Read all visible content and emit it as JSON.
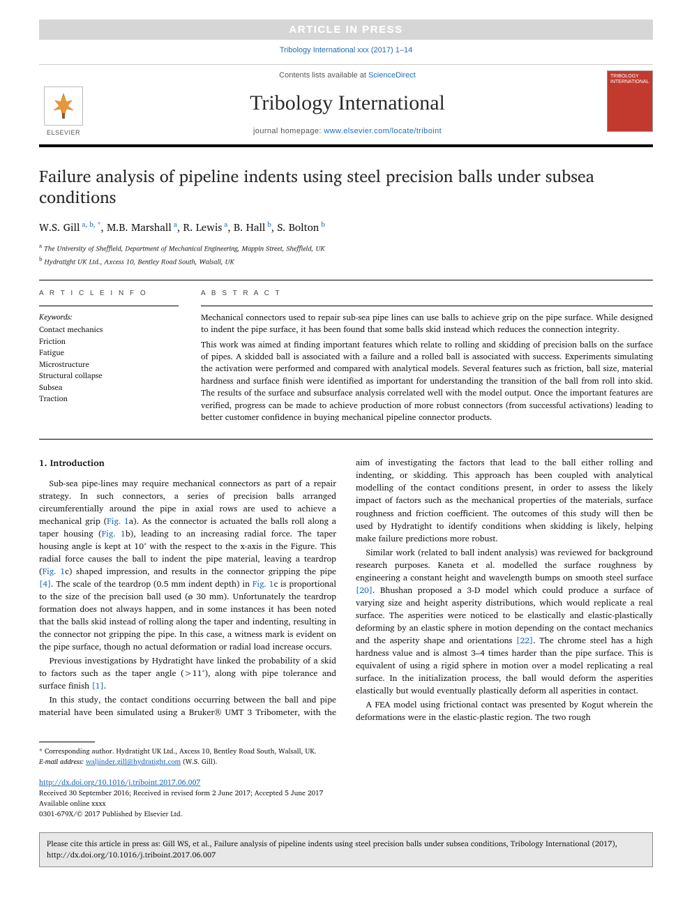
{
  "banner": "ARTICLE IN PRESS",
  "citation_top": "Tribology International xxx (2017) 1–14",
  "contents_line_prefix": "Contents lists available at ",
  "contents_link": "ScienceDirect",
  "journal_name": "Tribology International",
  "homepage_prefix": "journal homepage: ",
  "homepage_link": "www.elsevier.com/locate/triboint",
  "elsevier_label": "ELSEVIER",
  "cover_text": "TRIBOLOGY INTERNATIONAL",
  "title": "Failure analysis of pipeline indents using steel precision balls under subsea conditions",
  "authors_html": "W.S. Gill|a, b, *|, M.B. Marshall|a|, R. Lewis|a|, B. Hall|b|, S. Bolton|b|",
  "authors": [
    {
      "name": "W.S. Gill",
      "sup": "a, b, *"
    },
    {
      "name": "M.B. Marshall",
      "sup": "a"
    },
    {
      "name": "R. Lewis",
      "sup": "a"
    },
    {
      "name": "B. Hall",
      "sup": "b"
    },
    {
      "name": "S. Bolton",
      "sup": "b"
    }
  ],
  "affiliations": [
    {
      "sup": "a",
      "text": "The University of Sheffield, Department of Mechanical Engineering, Mappin Street, Sheffield, UK"
    },
    {
      "sup": "b",
      "text": "Hydratight UK Ltd., Axcess 10, Bentley Road South, Walsall, UK"
    }
  ],
  "article_info_label": "A R T I C L E  I N F O",
  "abstract_label": "A B S T R A C T",
  "keywords_label": "Keywords:",
  "keywords": [
    "Contact mechanics",
    "Friction",
    "Fatigue",
    "Microstructure",
    "Structural collapse",
    "Subsea",
    "Traction"
  ],
  "abstract_paras": [
    "Mechanical connectors used to repair sub-sea pipe lines can use balls to achieve grip on the pipe surface. While designed to indent the pipe surface, it has been found that some balls skid instead which reduces the connection integrity.",
    "This work was aimed at finding important features which relate to rolling and skidding of precision balls on the surface of pipes. A skidded ball is associated with a failure and a rolled ball is associated with success. Experiments simulating the activation were performed and compared with analytical models. Several features such as friction, ball size, material hardness and surface finish were identified as important for understanding the transition of the ball from roll into skid. The results of the surface and subsurface analysis correlated well with the model output. Once the important features are verified, progress can be made to achieve production of more robust connectors (from successful activations) leading to better customer confidence in buying mechanical pipeline connector products."
  ],
  "intro_heading": "1. Introduction",
  "intro_paras": [
    "Sub-sea pipe-lines may require mechanical connectors as part of a repair strategy. In such connectors, a series of precision balls arranged circumferentially around the pipe in axial rows are used to achieve a mechanical grip (<span class='ref-link'>Fig. 1</span>a). As the connector is actuated the balls roll along a taper housing (<span class='ref-link'>Fig. 1</span>b), leading to an increasing radial force. The taper housing angle is kept at 10° with the respect to the x-axis in the Figure. This radial force causes the ball to indent the pipe material, leaving a teardrop (<span class='ref-link'>Fig. 1</span>c) shaped impression, and results in the connector gripping the pipe <span class='ref-link'>[4]</span>. The scale of the teardrop (0.5 mm indent depth) in <span class='ref-link'>Fig. 1</span>c is proportional to the size of the precision ball used (ø 30 mm). Unfortunately the teardrop formation does not always happen, and in some instances it has been noted that the balls skid instead of rolling along the taper and indenting, resulting in the connector not gripping the pipe. In this case, a witness mark is evident on the pipe surface, though no actual deformation or radial load increase occurs.",
    "Previous investigations by Hydratight have linked the probability of a skid to factors such as the taper angle (>11°), along with pipe tolerance and surface finish <span class='ref-link'>[1]</span>.",
    "In this study, the contact conditions occurring between the ball and pipe material have been simulated using a Bruker® UMT 3 Tribometer, with the aim of investigating the factors that lead to the ball either rolling and indenting, or skidding. This approach has been coupled with analytical modelling of the contact conditions present, in order to assess the likely impact of factors such as the mechanical properties of the materials, surface roughness and friction coefficient. The outcomes of this study will then be used by Hydratight to identify conditions when skidding is likely, helping make failure predictions more robust.",
    "Similar work (related to ball indent analysis) was reviewed for background research purposes. Kaneta et al. modelled the surface roughness by engineering a constant height and wavelength bumps on smooth steel surface <span class='ref-link'>[20]</span>. Bhushan proposed a 3-D model which could produce a surface of varying size and height asperity distributions, which would replicate a real surface. The asperities were noticed to be elastically and elastic-plastically deforming by an elastic sphere in motion depending on the contact mechanics and the asperity shape and orientations <span class='ref-link'>[22]</span>. The chrome steel has a high hardness value and is almost 3–4 times harder than the pipe surface. This is equivalent of using a rigid sphere in motion over a model replicating a real surface. In the initialization process, the ball would deform the asperities elastically but would eventually plastically deform all asperities in contact.",
    "A FEA model using frictional contact was presented by Kogut wherein the deformations were in the elastic-plastic region. The two rough"
  ],
  "corresponding": "* Corresponding author. Hydratight UK Ltd., Axcess 10, Bentley Road South, Walsall, UK.",
  "email_label": "E-mail address:",
  "email": "waljinder.gill@hydratight.com",
  "email_suffix": "(W.S. Gill).",
  "doi_link": "http://dx.doi.org/10.1016/j.triboint.2017.06.007",
  "history": "Received 30 September 2016; Received in revised form 2 June 2017; Accepted 5 June 2017",
  "available": "Available online xxxx",
  "copyright": "0301-679X/© 2017 Published by Elsevier Ltd.",
  "citebox": "Please cite this article in press as: Gill WS, et al., Failure analysis of pipeline indents using steel precision balls under subsea conditions, Tribology International (2017), http://dx.doi.org/10.1016/j.triboint.2017.06.007",
  "colors": {
    "link": "#1e6bb8",
    "banner_bg": "#d6d6d6",
    "cover_bg": "#c23a2e",
    "citebox_bg": "#e8e8e8"
  }
}
